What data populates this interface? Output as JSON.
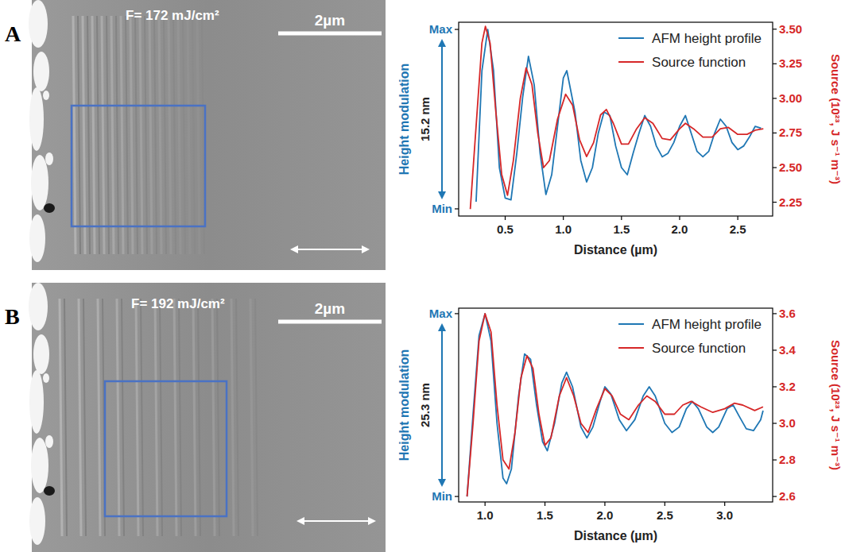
{
  "panels": [
    {
      "letter": "A",
      "image": {
        "fluence": "F= 172 mJ/cm²",
        "scale_bar": "2µm"
      }
    },
    {
      "letter": "B",
      "image": {
        "fluence": "F= 192 mJ/cm²",
        "scale_bar": "2µm"
      }
    }
  ],
  "chart_data": [
    {
      "type": "line",
      "x_label": "Distance (µm)",
      "y_label": "Height modulation",
      "y2_label": "Source (10²³, J s⁻¹ m⁻³)",
      "annotations": [
        "15.2 nm"
      ],
      "xlim": [
        0.1,
        2.8
      ],
      "xticks": [
        0.5,
        {
          "value": 1,
          "label": "1.0"
        },
        1.5,
        {
          "value": 2,
          "label": "2.0"
        },
        2.5
      ],
      "ylim": [
        -0.04,
        1.04
      ],
      "yticks": [
        {
          "value": 0,
          "label": "Min"
        },
        {
          "value": 1,
          "label": "Max"
        }
      ],
      "y2lim": [
        2.15,
        3.55
      ],
      "y2ticks": [
        2.25,
        {
          "value": 2.5,
          "label": "2.50"
        },
        2.75,
        {
          "value": 3,
          "label": "3.00"
        },
        3.25,
        {
          "value": 3.5,
          "label": "3.50"
        }
      ],
      "legend": "upper right",
      "series": [
        {
          "name": "AFM height profile",
          "color": "#1f77b4",
          "x": [
            0.25,
            0.3,
            0.35,
            0.4,
            0.45,
            0.5,
            0.55,
            0.6,
            0.65,
            0.7,
            0.75,
            0.8,
            0.85,
            0.9,
            0.95,
            1.0,
            1.03,
            1.1,
            1.15,
            1.2,
            1.25,
            1.3,
            1.35,
            1.4,
            1.45,
            1.5,
            1.55,
            1.6,
            1.65,
            1.7,
            1.75,
            1.8,
            1.85,
            1.9,
            1.95,
            2.0,
            2.05,
            2.1,
            2.15,
            2.2,
            2.25,
            2.3,
            2.35,
            2.4,
            2.45,
            2.5,
            2.55,
            2.6,
            2.65,
            2.7
          ],
          "values": [
            0.04,
            0.77,
            1.0,
            0.77,
            0.23,
            0.06,
            0.05,
            0.31,
            0.62,
            0.85,
            0.69,
            0.31,
            0.08,
            0.19,
            0.46,
            0.73,
            0.77,
            0.54,
            0.27,
            0.15,
            0.23,
            0.42,
            0.54,
            0.52,
            0.35,
            0.23,
            0.19,
            0.31,
            0.42,
            0.52,
            0.46,
            0.35,
            0.29,
            0.31,
            0.37,
            0.46,
            0.52,
            0.42,
            0.32,
            0.29,
            0.32,
            0.42,
            0.5,
            0.46,
            0.37,
            0.33,
            0.35,
            0.4,
            0.46,
            0.45
          ]
        },
        {
          "name": "Source function",
          "color": "#d62728",
          "axis": "y2",
          "x": [
            0.2,
            0.25,
            0.3,
            0.33,
            0.37,
            0.42,
            0.47,
            0.52,
            0.57,
            0.63,
            0.68,
            0.73,
            0.78,
            0.83,
            0.88,
            0.95,
            1.02,
            1.08,
            1.14,
            1.2,
            1.26,
            1.32,
            1.37,
            1.43,
            1.5,
            1.56,
            1.63,
            1.7,
            1.77,
            1.85,
            1.92,
            2.0,
            2.05,
            2.12,
            2.2,
            2.28,
            2.35,
            2.42,
            2.5,
            2.58,
            2.65,
            2.72
          ],
          "values": [
            2.2,
            2.8,
            3.4,
            3.52,
            3.4,
            2.9,
            2.45,
            2.3,
            2.55,
            3.0,
            3.22,
            3.1,
            2.75,
            2.5,
            2.55,
            2.85,
            3.03,
            2.95,
            2.7,
            2.58,
            2.68,
            2.88,
            2.92,
            2.82,
            2.67,
            2.67,
            2.78,
            2.86,
            2.82,
            2.71,
            2.7,
            2.78,
            2.82,
            2.78,
            2.72,
            2.72,
            2.78,
            2.79,
            2.74,
            2.74,
            2.77,
            2.78
          ]
        }
      ]
    },
    {
      "type": "line",
      "x_label": "Distance (µm)",
      "y_label": "Height modulation",
      "y2_label": "Source (10²³, J s⁻¹ m⁻³)",
      "annotations": [
        "25.3 nm"
      ],
      "xlim": [
        0.78,
        3.4
      ],
      "xticks": [
        {
          "value": 1,
          "label": "1.0"
        },
        1.5,
        {
          "value": 2,
          "label": "2.0"
        },
        2.5,
        {
          "value": 3,
          "label": "3.0"
        }
      ],
      "ylim": [
        -0.03,
        1.03
      ],
      "yticks": [
        {
          "value": 0,
          "label": "Min"
        },
        {
          "value": 1,
          "label": "Max"
        }
      ],
      "y2lim": [
        2.57,
        3.63
      ],
      "y2ticks": [
        2.6,
        2.8,
        {
          "value": 3,
          "label": "3.0"
        },
        3.2,
        3.4,
        3.6
      ],
      "legend": "upper right",
      "series": [
        {
          "name": "AFM height profile",
          "color": "#1f77b4",
          "x": [
            0.85,
            0.9,
            0.95,
            1.0,
            1.05,
            1.1,
            1.15,
            1.18,
            1.22,
            1.28,
            1.33,
            1.38,
            1.43,
            1.48,
            1.52,
            1.58,
            1.64,
            1.68,
            1.73,
            1.8,
            1.85,
            1.9,
            1.96,
            2.0,
            2.05,
            2.12,
            2.18,
            2.25,
            2.32,
            2.37,
            2.42,
            2.5,
            2.56,
            2.62,
            2.68,
            2.73,
            2.78,
            2.85,
            2.9,
            2.95,
            3.02,
            3.07,
            3.12,
            3.18,
            3.24,
            3.3,
            3.32
          ],
          "values": [
            0.0,
            0.45,
            0.88,
            1.0,
            0.85,
            0.4,
            0.1,
            0.07,
            0.15,
            0.55,
            0.78,
            0.75,
            0.5,
            0.3,
            0.25,
            0.4,
            0.62,
            0.68,
            0.6,
            0.38,
            0.32,
            0.38,
            0.52,
            0.6,
            0.56,
            0.42,
            0.36,
            0.42,
            0.55,
            0.6,
            0.55,
            0.4,
            0.35,
            0.38,
            0.48,
            0.52,
            0.48,
            0.38,
            0.35,
            0.38,
            0.48,
            0.5,
            0.44,
            0.37,
            0.36,
            0.42,
            0.47
          ]
        },
        {
          "name": "Source function",
          "color": "#d62728",
          "axis": "y2",
          "x": [
            0.85,
            0.9,
            0.95,
            1.0,
            1.05,
            1.1,
            1.15,
            1.2,
            1.25,
            1.3,
            1.35,
            1.4,
            1.45,
            1.5,
            1.55,
            1.62,
            1.68,
            1.74,
            1.8,
            1.86,
            1.93,
            2.0,
            2.06,
            2.13,
            2.2,
            2.28,
            2.35,
            2.42,
            2.5,
            2.58,
            2.65,
            2.72,
            2.8,
            2.9,
            3.0,
            3.08,
            3.15,
            3.25,
            3.32
          ],
          "values": [
            2.6,
            3.0,
            3.45,
            3.6,
            3.5,
            3.1,
            2.8,
            2.75,
            2.95,
            3.25,
            3.37,
            3.3,
            3.05,
            2.88,
            2.92,
            3.15,
            3.25,
            3.15,
            3.0,
            2.95,
            3.08,
            3.19,
            3.15,
            3.05,
            3.02,
            3.1,
            3.15,
            3.12,
            3.05,
            3.05,
            3.1,
            3.12,
            3.09,
            3.06,
            3.08,
            3.11,
            3.1,
            3.07,
            3.09
          ]
        }
      ]
    }
  ]
}
